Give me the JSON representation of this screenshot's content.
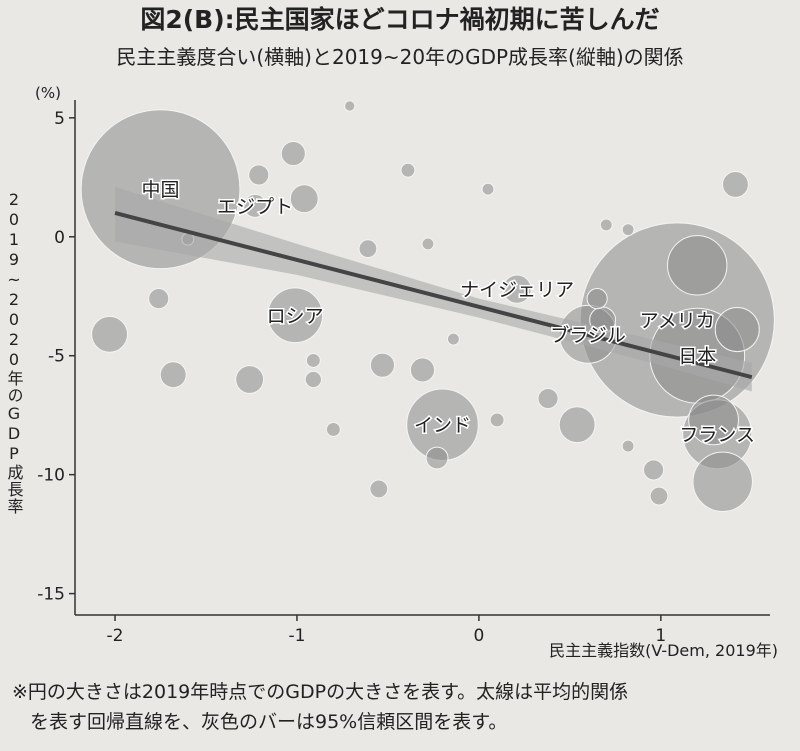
{
  "chart_data": {
    "type": "bubble",
    "title": "図2(B):民主国家ほどコロナ禍初期に苦しんだ",
    "subtitle": "民主主義度合い(横軸)と2019~20年のGDP成長率(縦軸)の関係",
    "x_label": "民主主義指数(V-Dem, 2019年)",
    "y_label": "2019~2020年のGDP成長率",
    "y_unit": "(%)",
    "footnote": [
      "※円の大きさは2019年時点でのGDPの大きさを表す。太線は平均的関係",
      "を表す回帰直線を、灰色のバーは95%信頼区間を表す。"
    ],
    "xlim": [
      -2.22,
      1.6
    ],
    "ylim": [
      -15.9,
      5.75
    ],
    "xticks": [
      -2,
      -1,
      0,
      1
    ],
    "yticks": [
      5,
      0,
      -5,
      -10,
      -15
    ],
    "color": "#8a8a8a",
    "x": [
      -1.75,
      -1.23,
      1.09,
      1.2,
      1.31,
      0.6,
      0.21,
      -1.01,
      -0.2,
      -2.03,
      -1.76,
      -1.68,
      -1.26,
      -1.02,
      -0.96,
      -1.21,
      -0.91,
      -0.53,
      -0.31,
      -0.55,
      -0.23,
      -0.61,
      0.38,
      0.68,
      0.65,
      0.54,
      0.96,
      1.41,
      1.2,
      1.42,
      1.34,
      1.29,
      0.99,
      -0.8,
      0.1,
      -0.39,
      0.05,
      -0.28,
      -0.14,
      0.7,
      0.82,
      0.82,
      -0.71,
      -1.6,
      -0.91
    ],
    "y": [
      2.0,
      1.3,
      -3.5,
      -5.0,
      -8.3,
      -4.1,
      -2.2,
      -3.3,
      -7.9,
      -4.1,
      -2.6,
      -5.8,
      -6.0,
      3.5,
      1.6,
      2.6,
      -6.0,
      -5.4,
      -5.6,
      -10.6,
      -9.3,
      -0.5,
      -6.8,
      -3.5,
      -2.6,
      -7.9,
      -9.8,
      2.2,
      -1.2,
      -3.9,
      -10.3,
      -7.7,
      -10.9,
      -8.1,
      -7.7,
      2.8,
      2.0,
      -0.3,
      -4.3,
      0.5,
      0.3,
      -8.8,
      5.5,
      -0.1,
      -5.2
    ],
    "size": [
      14.3,
      0.3,
      21.4,
      5.1,
      2.7,
      1.9,
      0.45,
      1.7,
      2.9,
      0.73,
      0.23,
      0.38,
      0.44,
      0.33,
      0.44,
      0.23,
      0.15,
      0.33,
      0.33,
      0.18,
      0.27,
      0.18,
      0.23,
      0.38,
      0.23,
      0.73,
      0.23,
      0.38,
      2.0,
      1.1,
      2.0,
      1.4,
      0.18,
      0.11,
      0.11,
      0.11,
      0.08,
      0.08,
      0.08,
      0.08,
      0.08,
      0.08,
      0.06,
      0.08,
      0.11
    ],
    "labels": [
      "中国",
      "エジプト",
      "アメリカ",
      "日本",
      "フランス",
      "ブラジル",
      "ナイジェリア",
      "ロシア",
      "インド",
      null,
      null,
      null,
      null,
      null,
      null,
      null,
      null,
      null,
      null,
      null,
      null,
      null,
      null,
      null,
      null,
      null,
      null,
      null,
      null,
      null,
      null,
      null,
      null,
      null,
      null,
      null,
      null,
      null,
      null,
      null,
      null,
      null,
      null,
      null,
      null
    ],
    "trend": {
      "x": [
        -2,
        1.5
      ],
      "y": [
        1.0,
        -5.9
      ],
      "color": "#444444"
    },
    "band": {
      "x": [
        -2,
        -1,
        0,
        1,
        1.5
      ],
      "upper": [
        2.1,
        -0.3,
        -2.6,
        -4.4,
        -5.3
      ],
      "lower": [
        -0.2,
        -1.6,
        -3.4,
        -5.4,
        -6.5
      ],
      "color": "#a9a9a9"
    }
  }
}
